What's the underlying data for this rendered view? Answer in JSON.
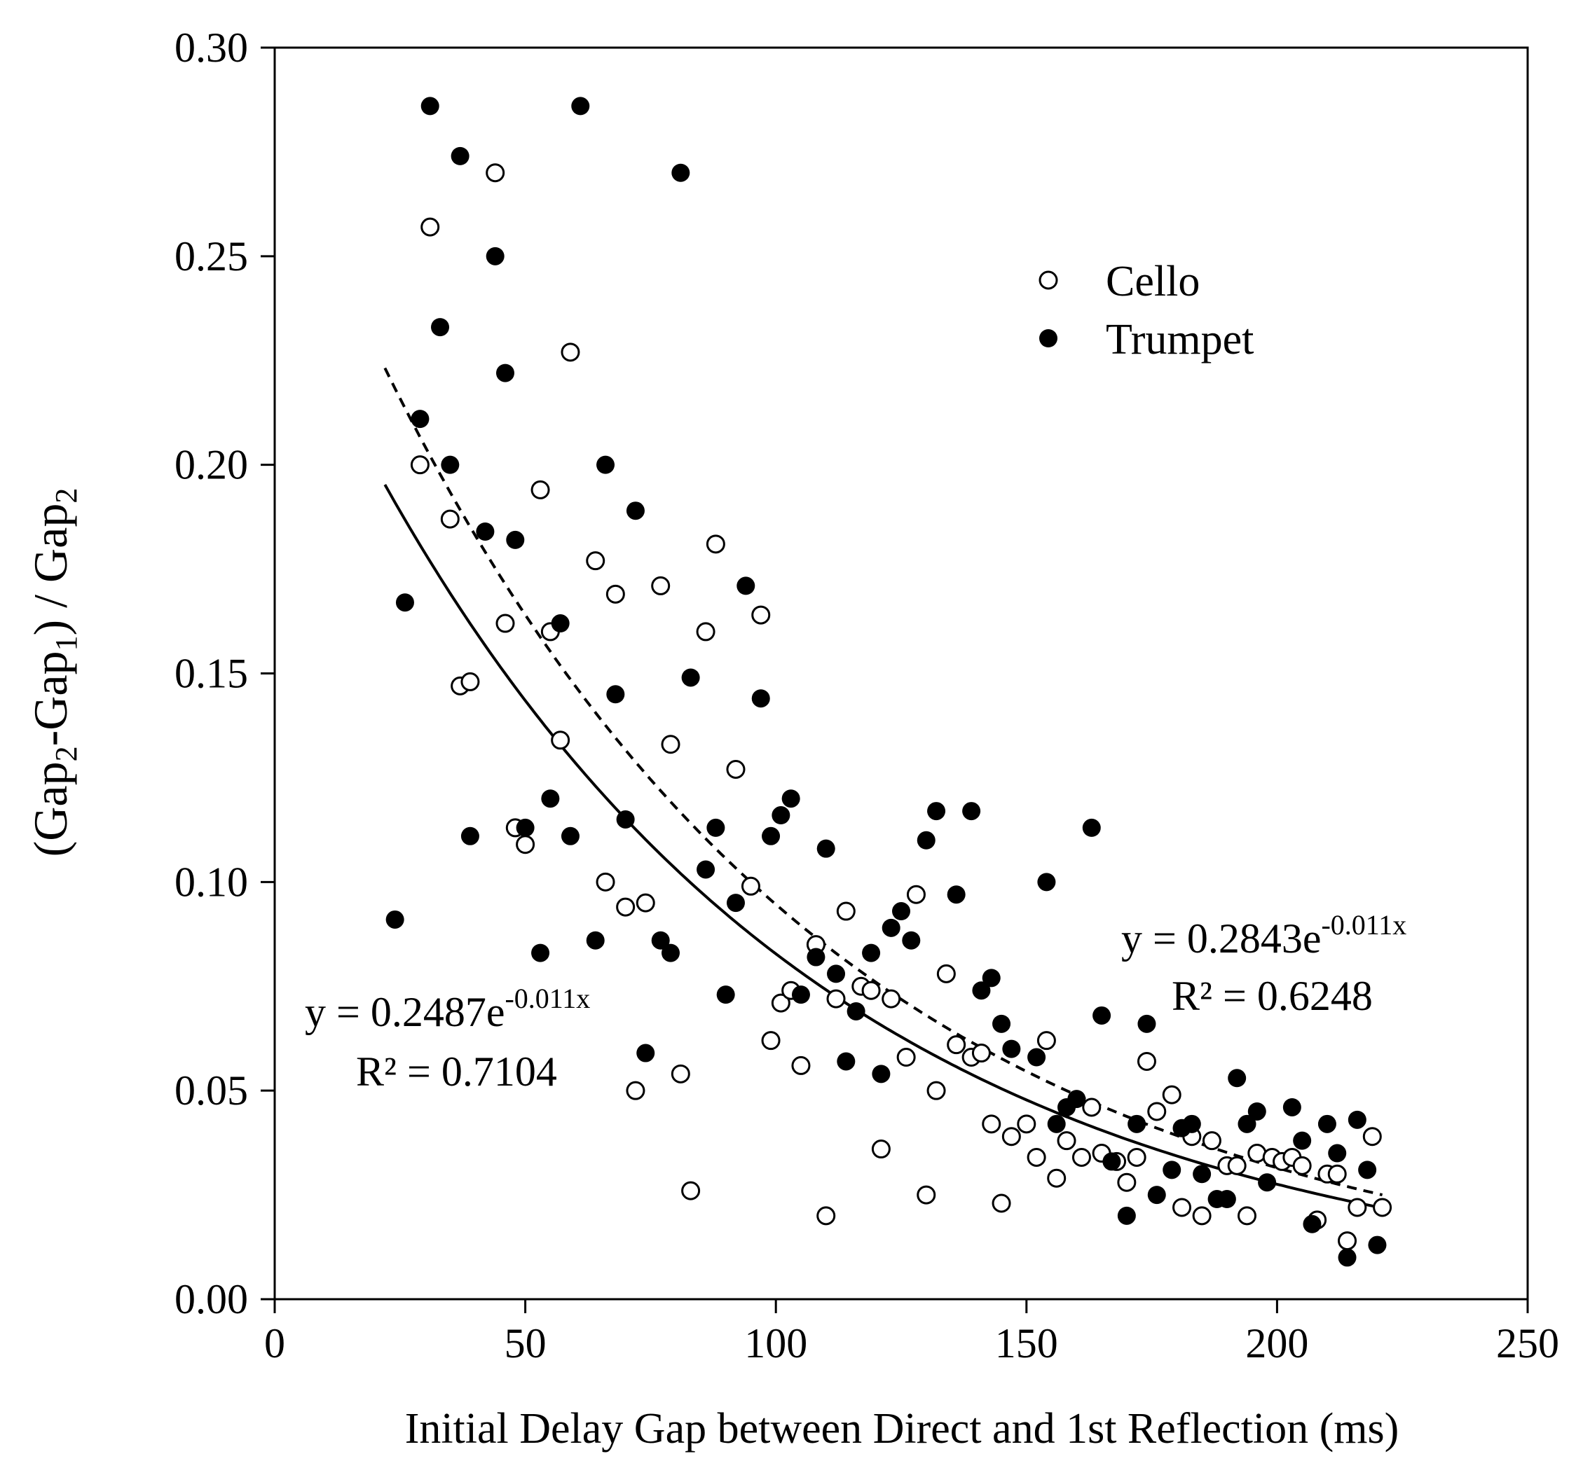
{
  "chart_data": {
    "type": "scatter",
    "xlabel": "Initial Delay Gap between Direct and 1st Reflection (ms)",
    "ylabel": "(Gap2-Gap1) / Gap2",
    "xlim": [
      0,
      250
    ],
    "ylim": [
      0,
      0.3
    ],
    "x_ticks": [
      "0",
      "50",
      "100",
      "150",
      "200",
      "250"
    ],
    "y_ticks": [
      "0.00",
      "0.05",
      "0.10",
      "0.15",
      "0.20",
      "0.25",
      "0.30"
    ],
    "grid": false,
    "legend_position": "top-right",
    "series": [
      {
        "name": "Cello",
        "marker": "open-circle",
        "color": "#000000",
        "points": [
          [
            29,
            0.2
          ],
          [
            31,
            0.257
          ],
          [
            35,
            0.187
          ],
          [
            37,
            0.147
          ],
          [
            39,
            0.148
          ],
          [
            44,
            0.27
          ],
          [
            46,
            0.162
          ],
          [
            48,
            0.113
          ],
          [
            50,
            0.109
          ],
          [
            53,
            0.194
          ],
          [
            55,
            0.16
          ],
          [
            57,
            0.134
          ],
          [
            59,
            0.227
          ],
          [
            64,
            0.177
          ],
          [
            66,
            0.1
          ],
          [
            68,
            0.169
          ],
          [
            70,
            0.094
          ],
          [
            72,
            0.05
          ],
          [
            74,
            0.095
          ],
          [
            77,
            0.171
          ],
          [
            79,
            0.133
          ],
          [
            81,
            0.054
          ],
          [
            83,
            0.026
          ],
          [
            86,
            0.16
          ],
          [
            88,
            0.181
          ],
          [
            92,
            0.127
          ],
          [
            95,
            0.099
          ],
          [
            97,
            0.164
          ],
          [
            99,
            0.062
          ],
          [
            101,
            0.071
          ],
          [
            103,
            0.074
          ],
          [
            105,
            0.056
          ],
          [
            108,
            0.085
          ],
          [
            110,
            0.02
          ],
          [
            112,
            0.072
          ],
          [
            114,
            0.093
          ],
          [
            117,
            0.075
          ],
          [
            119,
            0.074
          ],
          [
            121,
            0.036
          ],
          [
            123,
            0.072
          ],
          [
            126,
            0.058
          ],
          [
            128,
            0.097
          ],
          [
            130,
            0.025
          ],
          [
            132,
            0.05
          ],
          [
            134,
            0.078
          ],
          [
            136,
            0.061
          ],
          [
            139,
            0.058
          ],
          [
            141,
            0.059
          ],
          [
            143,
            0.042
          ],
          [
            145,
            0.023
          ],
          [
            147,
            0.039
          ],
          [
            150,
            0.042
          ],
          [
            152,
            0.034
          ],
          [
            154,
            0.062
          ],
          [
            156,
            0.029
          ],
          [
            158,
            0.038
          ],
          [
            161,
            0.034
          ],
          [
            163,
            0.046
          ],
          [
            165,
            0.035
          ],
          [
            168,
            0.033
          ],
          [
            170,
            0.028
          ],
          [
            172,
            0.034
          ],
          [
            174,
            0.057
          ],
          [
            176,
            0.045
          ],
          [
            179,
            0.049
          ],
          [
            181,
            0.022
          ],
          [
            183,
            0.039
          ],
          [
            185,
            0.02
          ],
          [
            187,
            0.038
          ],
          [
            190,
            0.032
          ],
          [
            192,
            0.032
          ],
          [
            194,
            0.02
          ],
          [
            196,
            0.035
          ],
          [
            199,
            0.034
          ],
          [
            201,
            0.033
          ],
          [
            203,
            0.034
          ],
          [
            205,
            0.032
          ],
          [
            208,
            0.019
          ],
          [
            210,
            0.03
          ],
          [
            212,
            0.03
          ],
          [
            214,
            0.014
          ],
          [
            216,
            0.022
          ],
          [
            219,
            0.039
          ],
          [
            221,
            0.022
          ]
        ],
        "fit": {
          "label": "y = 0.2487e-0.011x",
          "r2_label": "R² = 0.7104",
          "a": 0.2487,
          "b": -0.011,
          "x_range": [
            22,
            221
          ],
          "line_style": "solid"
        }
      },
      {
        "name": "Trumpet",
        "marker": "filled-circle",
        "color": "#000000",
        "points": [
          [
            24,
            0.091
          ],
          [
            26,
            0.167
          ],
          [
            29,
            0.211
          ],
          [
            31,
            0.286
          ],
          [
            33,
            0.233
          ],
          [
            35,
            0.2
          ],
          [
            37,
            0.274
          ],
          [
            39,
            0.111
          ],
          [
            42,
            0.184
          ],
          [
            44,
            0.25
          ],
          [
            46,
            0.222
          ],
          [
            48,
            0.182
          ],
          [
            50,
            0.113
          ],
          [
            53,
            0.083
          ],
          [
            55,
            0.12
          ],
          [
            57,
            0.162
          ],
          [
            59,
            0.111
          ],
          [
            61,
            0.286
          ],
          [
            64,
            0.086
          ],
          [
            66,
            0.2
          ],
          [
            68,
            0.145
          ],
          [
            70,
            0.115
          ],
          [
            72,
            0.189
          ],
          [
            74,
            0.059
          ],
          [
            77,
            0.086
          ],
          [
            79,
            0.083
          ],
          [
            81,
            0.27
          ],
          [
            83,
            0.149
          ],
          [
            86,
            0.103
          ],
          [
            88,
            0.113
          ],
          [
            90,
            0.073
          ],
          [
            92,
            0.095
          ],
          [
            94,
            0.171
          ],
          [
            97,
            0.144
          ],
          [
            99,
            0.111
          ],
          [
            101,
            0.116
          ],
          [
            103,
            0.12
          ],
          [
            105,
            0.073
          ],
          [
            108,
            0.082
          ],
          [
            110,
            0.108
          ],
          [
            112,
            0.078
          ],
          [
            114,
            0.057
          ],
          [
            116,
            0.069
          ],
          [
            119,
            0.083
          ],
          [
            121,
            0.054
          ],
          [
            123,
            0.089
          ],
          [
            125,
            0.093
          ],
          [
            127,
            0.086
          ],
          [
            130,
            0.11
          ],
          [
            132,
            0.117
          ],
          [
            136,
            0.097
          ],
          [
            139,
            0.117
          ],
          [
            141,
            0.074
          ],
          [
            143,
            0.077
          ],
          [
            145,
            0.066
          ],
          [
            147,
            0.06
          ],
          [
            152,
            0.058
          ],
          [
            154,
            0.1
          ],
          [
            156,
            0.042
          ],
          [
            158,
            0.046
          ],
          [
            160,
            0.048
          ],
          [
            163,
            0.113
          ],
          [
            165,
            0.068
          ],
          [
            167,
            0.033
          ],
          [
            170,
            0.02
          ],
          [
            172,
            0.042
          ],
          [
            174,
            0.066
          ],
          [
            176,
            0.025
          ],
          [
            179,
            0.031
          ],
          [
            181,
            0.041
          ],
          [
            183,
            0.042
          ],
          [
            185,
            0.03
          ],
          [
            188,
            0.024
          ],
          [
            190,
            0.024
          ],
          [
            192,
            0.053
          ],
          [
            194,
            0.042
          ],
          [
            196,
            0.045
          ],
          [
            198,
            0.028
          ],
          [
            203,
            0.046
          ],
          [
            205,
            0.038
          ],
          [
            207,
            0.018
          ],
          [
            210,
            0.042
          ],
          [
            212,
            0.035
          ],
          [
            214,
            0.01
          ],
          [
            216,
            0.043
          ],
          [
            218,
            0.031
          ],
          [
            220,
            0.013
          ]
        ],
        "fit": {
          "label": "y = 0.2843e-0.011x",
          "r2_label": "R² = 0.6248",
          "a": 0.2843,
          "b": -0.011,
          "x_range": [
            22,
            221
          ],
          "line_style": "dashed"
        }
      }
    ]
  },
  "labels": {
    "ylabel_parts": [
      "(Gap",
      "2",
      "-Gap",
      "1",
      ") / Gap",
      "2"
    ],
    "cello_fit_base": "y = 0.2487e",
    "cello_fit_exp": "-0.011x",
    "cello_r2": "R² = 0.7104",
    "trumpet_fit_base": "y = 0.2843e",
    "trumpet_fit_exp": "-0.011x",
    "trumpet_r2": "R² = 0.6248"
  }
}
